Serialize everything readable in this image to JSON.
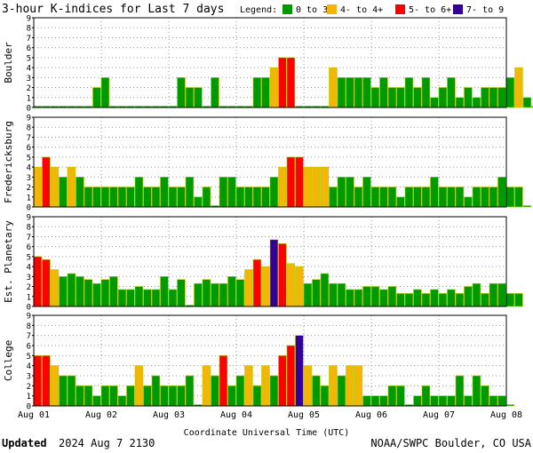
{
  "title": "3-hour K-indices for Last 7 days",
  "legend": {
    "label": "Legend:",
    "items": [
      {
        "label": "0 to 3+",
        "color": "#009900"
      },
      {
        "label": "4- to 4+",
        "color": "#f2b705"
      },
      {
        "label": "5- to 6+",
        "color": "#ff0000"
      },
      {
        "label": "7- to 9",
        "color": "#330099"
      }
    ]
  },
  "colors": {
    "bar_outline": "#b0d000",
    "grid": "#999999",
    "frame": "#000000",
    "background": "#ffffff"
  },
  "x_axis": {
    "label": "Coordinate Universal Time (UTC)",
    "ticks": [
      "Aug 01",
      "Aug 02",
      "Aug 03",
      "Aug 04",
      "Aug 05",
      "Aug 06",
      "Aug 07",
      "Aug 08"
    ]
  },
  "footer": {
    "updated_label": "Updated",
    "updated_value": "2024 Aug  7 2130",
    "source": "NOAA/SWPC Boulder, CO USA"
  },
  "chart_data": {
    "type": "bar",
    "ylim": [
      0,
      9
    ],
    "y_ticks": [
      "0",
      "1",
      "2",
      "3",
      "4",
      "5",
      "6",
      "7",
      "8",
      "9"
    ],
    "bins_per_day": 8,
    "x_start": "Aug 01",
    "x_end": "Aug 08",
    "panels": [
      {
        "name": "Boulder",
        "values": [
          0,
          0,
          0,
          0,
          0,
          0,
          0,
          2,
          3,
          0,
          0,
          0,
          0,
          0,
          0,
          0,
          0,
          3,
          2,
          2,
          0,
          3,
          0,
          0,
          0,
          0,
          3,
          3,
          4,
          5,
          5,
          0,
          0,
          0,
          0,
          4,
          3,
          3,
          3,
          3,
          2,
          3,
          2,
          2,
          3,
          2,
          3,
          1,
          2,
          3,
          1,
          2,
          1,
          2,
          2,
          2,
          3,
          4,
          1,
          0
        ]
      },
      {
        "name": "Fredericksburg",
        "values": [
          4,
          5,
          4,
          3,
          4,
          3,
          2,
          2,
          2,
          2,
          2,
          2,
          3,
          2,
          2,
          3,
          2,
          2,
          3,
          1,
          2,
          0,
          3,
          3,
          2,
          2,
          2,
          2,
          3,
          4,
          5,
          5,
          4,
          4,
          4,
          2,
          3,
          3,
          2,
          3,
          2,
          2,
          2,
          1,
          2,
          2,
          2,
          3,
          2,
          2,
          2,
          1,
          2,
          2,
          2,
          3,
          2,
          2,
          0
        ]
      },
      {
        "name": "Est. Planetary",
        "values": [
          5,
          4.7,
          3.7,
          3,
          3.3,
          3,
          2.7,
          2.3,
          2.7,
          3,
          1.7,
          1.7,
          2,
          1.7,
          1.7,
          3,
          1.7,
          2.7,
          0,
          2.3,
          2.7,
          2.3,
          2.3,
          3,
          2.7,
          3.7,
          4.7,
          4,
          6.7,
          6.3,
          4.3,
          4,
          2.3,
          2.7,
          3.3,
          2.3,
          2.3,
          1.7,
          1.7,
          2,
          2,
          1.7,
          2,
          1.3,
          1.3,
          1.7,
          1.3,
          1.7,
          1.3,
          1.7,
          1.3,
          2,
          2.3,
          1.3,
          2.3,
          2.3,
          1.3,
          1.3
        ]
      },
      {
        "name": "College",
        "values": [
          5,
          5,
          4,
          3,
          3,
          2,
          2,
          1,
          2,
          2,
          1,
          2,
          4,
          2,
          3,
          2,
          2,
          2,
          3,
          0,
          4,
          3,
          5,
          2,
          3,
          4,
          2,
          4,
          3,
          5,
          6,
          7,
          4,
          3,
          2,
          4,
          3,
          4,
          4,
          1,
          1,
          1,
          2,
          2,
          0,
          1,
          2,
          1,
          1,
          1,
          3,
          1,
          3,
          2,
          1,
          1,
          0
        ]
      }
    ]
  }
}
